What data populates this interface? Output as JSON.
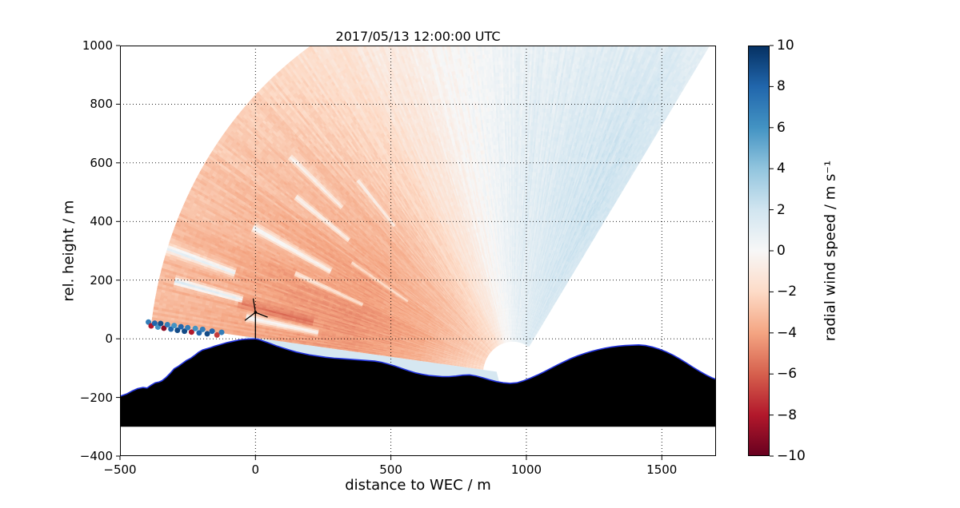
{
  "chart_data": {
    "type": "heatmap",
    "title": "2017/05/13 12:00:00 UTC",
    "xlabel": "distance to WEC / m",
    "ylabel": "rel. height / m",
    "xlim": [
      -500,
      1700
    ],
    "ylim": [
      -400,
      1000
    ],
    "grid": true,
    "background": "#ffffff",
    "xticks": {
      "values": [
        -500,
        0,
        500,
        1000,
        1500
      ],
      "labels": [
        "−500",
        "0",
        "500",
        "1000",
        "1500"
      ]
    },
    "yticks": {
      "values": [
        -400,
        -200,
        0,
        200,
        400,
        600,
        800,
        1000
      ],
      "labels": [
        "−400",
        "−200",
        "0",
        "200",
        "400",
        "600",
        "800",
        "1000"
      ]
    },
    "colorbar": {
      "label": "radial wind speed / m s⁻¹",
      "vmin": -10,
      "vmax": 10,
      "ticks": {
        "values": [
          -10,
          -8,
          -6,
          -4,
          -2,
          0,
          2,
          4,
          6,
          8,
          10
        ],
        "labels": [
          "−10",
          "−8",
          "−6",
          "−4",
          "−2",
          "0",
          "2",
          "4",
          "6",
          "8",
          "10"
        ]
      },
      "colormap_name": "RdBu",
      "colormap_stops": [
        "#67001f",
        "#b2182b",
        "#d6604d",
        "#f4a582",
        "#fddbc7",
        "#f7f7f7",
        "#d1e5f0",
        "#92c5de",
        "#4393c3",
        "#2166ac",
        "#053061"
      ]
    },
    "scan": {
      "comment_units": "lidar RHI scan sector; origin in data coords (m), angles deg CCW from +x axis, values m/s",
      "origin": [
        950,
        -120
      ],
      "range_min": 110,
      "range_max": 1340,
      "angle_min_deg": 57,
      "angle_max_deg": 172.5,
      "grid_angles_deg": [
        57,
        70,
        85,
        95,
        105,
        120,
        135,
        150,
        162,
        172.5
      ],
      "grid_t": [
        0,
        0.2,
        0.4,
        0.6,
        0.8,
        1.0
      ],
      "values": [
        [
          1.6,
          1.9,
          2.1,
          2.0,
          1.7,
          1.2
        ],
        [
          1.3,
          1.6,
          1.8,
          1.7,
          1.4,
          1.0
        ],
        [
          0.8,
          1.0,
          1.1,
          1.0,
          0.8,
          0.6
        ],
        [
          0.3,
          0.5,
          0.5,
          0.45,
          0.35,
          0.25
        ],
        [
          -0.3,
          -0.4,
          -0.45,
          -0.4,
          -0.3,
          -0.2
        ],
        [
          -1.6,
          -1.9,
          -2.0,
          -1.9,
          -1.6,
          -1.3
        ],
        [
          -2.2,
          -3.0,
          -3.3,
          -3.1,
          -2.7,
          -2.3
        ],
        [
          -2.4,
          -3.6,
          -4.1,
          -3.8,
          -3.3,
          -2.8
        ],
        [
          -2.2,
          -3.8,
          -4.5,
          -4.2,
          -3.6,
          -3.1
        ],
        [
          -2.0,
          -3.6,
          -4.3,
          -4.1,
          -3.6,
          -3.2
        ]
      ],
      "noise_amp": 0.5,
      "streaks": [
        {
          "a": 169.0,
          "da": 0.7,
          "t0": 0.5,
          "t1": 0.72,
          "dv": 4.0
        },
        {
          "a": 166.5,
          "da": 1.0,
          "t0": 0.52,
          "t1": 0.75,
          "dv": -1.2
        },
        {
          "a": 165.8,
          "da": 0.6,
          "t0": 0.74,
          "t1": 0.95,
          "dv": 4.5
        },
        {
          "a": 161.5,
          "da": 0.7,
          "t0": 0.78,
          "t1": 1.0,
          "dv": 4.0
        },
        {
          "a": 157.0,
          "da": 0.6,
          "t0": 0.4,
          "t1": 0.62,
          "dv": 3.0
        },
        {
          "a": 152.5,
          "da": 0.8,
          "t0": 0.52,
          "t1": 0.78,
          "dv": 3.5
        },
        {
          "a": 147.5,
          "da": 0.5,
          "t0": 0.28,
          "t1": 0.48,
          "dv": 2.5
        },
        {
          "a": 143.0,
          "da": 0.6,
          "t0": 0.52,
          "t1": 0.72,
          "dv": 3.0
        },
        {
          "a": 138.0,
          "da": 0.5,
          "t0": 0.6,
          "t1": 0.8,
          "dv": 2.5
        },
        {
          "a": 131.0,
          "da": 0.5,
          "t0": 0.45,
          "t1": 0.62,
          "dv": 2.0
        }
      ]
    },
    "ground_layer": {
      "x_start": -40,
      "x_end": 900,
      "top_line_angle_deg": 172.6,
      "value": 1.2,
      "color": "#d6e7f1"
    },
    "hard_targets": {
      "dot_radius_px": 3.5,
      "points": [
        [
          -395,
          57,
          7
        ],
        [
          -385,
          44,
          -8
        ],
        [
          -372,
          53,
          8
        ],
        [
          -360,
          40,
          6
        ],
        [
          -350,
          52,
          9
        ],
        [
          -338,
          36,
          -9
        ],
        [
          -325,
          48,
          7
        ],
        [
          -312,
          33,
          8
        ],
        [
          -300,
          45,
          6
        ],
        [
          -288,
          29,
          9
        ],
        [
          -275,
          41,
          8
        ],
        [
          -262,
          26,
          9
        ],
        [
          -250,
          38,
          7
        ],
        [
          -236,
          23,
          -8
        ],
        [
          -222,
          35,
          6
        ],
        [
          -208,
          20,
          8
        ],
        [
          -195,
          32,
          7
        ],
        [
          -178,
          17,
          9
        ],
        [
          -160,
          26,
          8
        ],
        [
          -142,
          13,
          -7
        ],
        [
          -125,
          22,
          7
        ]
      ]
    },
    "terrain": {
      "fill_color": "#000000",
      "edge_color": "#2233dd",
      "base_y": -300,
      "points": [
        [
          -500,
          -196
        ],
        [
          -475,
          -188
        ],
        [
          -455,
          -178
        ],
        [
          -435,
          -170
        ],
        [
          -415,
          -166
        ],
        [
          -400,
          -168
        ],
        [
          -385,
          -158
        ],
        [
          -370,
          -150
        ],
        [
          -355,
          -147
        ],
        [
          -345,
          -143
        ],
        [
          -330,
          -132
        ],
        [
          -315,
          -118
        ],
        [
          -300,
          -102
        ],
        [
          -285,
          -94
        ],
        [
          -270,
          -84
        ],
        [
          -255,
          -74
        ],
        [
          -240,
          -67
        ],
        [
          -225,
          -57
        ],
        [
          -210,
          -46
        ],
        [
          -195,
          -38
        ],
        [
          -180,
          -34
        ],
        [
          -165,
          -30
        ],
        [
          -150,
          -25
        ],
        [
          -135,
          -21
        ],
        [
          -120,
          -17
        ],
        [
          -105,
          -13
        ],
        [
          -90,
          -10
        ],
        [
          -75,
          -7
        ],
        [
          -60,
          -4
        ],
        [
          -45,
          -2
        ],
        [
          -30,
          -1
        ],
        [
          -15,
          -0.5
        ],
        [
          0,
          0
        ],
        [
          15,
          -3
        ],
        [
          30,
          -8
        ],
        [
          45,
          -13
        ],
        [
          60,
          -18
        ],
        [
          80,
          -25
        ],
        [
          100,
          -31
        ],
        [
          125,
          -38
        ],
        [
          150,
          -45
        ],
        [
          175,
          -50
        ],
        [
          200,
          -55
        ],
        [
          230,
          -59
        ],
        [
          260,
          -63
        ],
        [
          290,
          -66
        ],
        [
          320,
          -68
        ],
        [
          350,
          -70
        ],
        [
          380,
          -72
        ],
        [
          410,
          -74
        ],
        [
          440,
          -76
        ],
        [
          465,
          -80
        ],
        [
          490,
          -86
        ],
        [
          515,
          -93
        ],
        [
          540,
          -101
        ],
        [
          565,
          -109
        ],
        [
          590,
          -116
        ],
        [
          615,
          -121
        ],
        [
          640,
          -125
        ],
        [
          665,
          -127
        ],
        [
          690,
          -129
        ],
        [
          715,
          -129
        ],
        [
          740,
          -127
        ],
        [
          765,
          -124
        ],
        [
          790,
          -123
        ],
        [
          815,
          -127
        ],
        [
          840,
          -133
        ],
        [
          865,
          -140
        ],
        [
          890,
          -146
        ],
        [
          915,
          -150
        ],
        [
          940,
          -152
        ],
        [
          965,
          -150
        ],
        [
          990,
          -143
        ],
        [
          1015,
          -134
        ],
        [
          1040,
          -124
        ],
        [
          1065,
          -113
        ],
        [
          1090,
          -101
        ],
        [
          1115,
          -89
        ],
        [
          1140,
          -78
        ],
        [
          1165,
          -67
        ],
        [
          1190,
          -58
        ],
        [
          1215,
          -50
        ],
        [
          1240,
          -43
        ],
        [
          1265,
          -37
        ],
        [
          1290,
          -32
        ],
        [
          1315,
          -28
        ],
        [
          1340,
          -25
        ],
        [
          1365,
          -23
        ],
        [
          1390,
          -22
        ],
        [
          1415,
          -21
        ],
        [
          1440,
          -23
        ],
        [
          1465,
          -28
        ],
        [
          1490,
          -35
        ],
        [
          1515,
          -44
        ],
        [
          1540,
          -55
        ],
        [
          1565,
          -68
        ],
        [
          1590,
          -82
        ],
        [
          1615,
          -97
        ],
        [
          1640,
          -111
        ],
        [
          1665,
          -124
        ],
        [
          1685,
          -133
        ],
        [
          1700,
          -138
        ]
      ]
    },
    "turbine": {
      "x": 0,
      "base_y": 0,
      "hub_height_m": 90,
      "blade_length_m": 48,
      "blade_angles_deg": [
        100,
        215,
        340
      ],
      "color": "#000000"
    }
  }
}
